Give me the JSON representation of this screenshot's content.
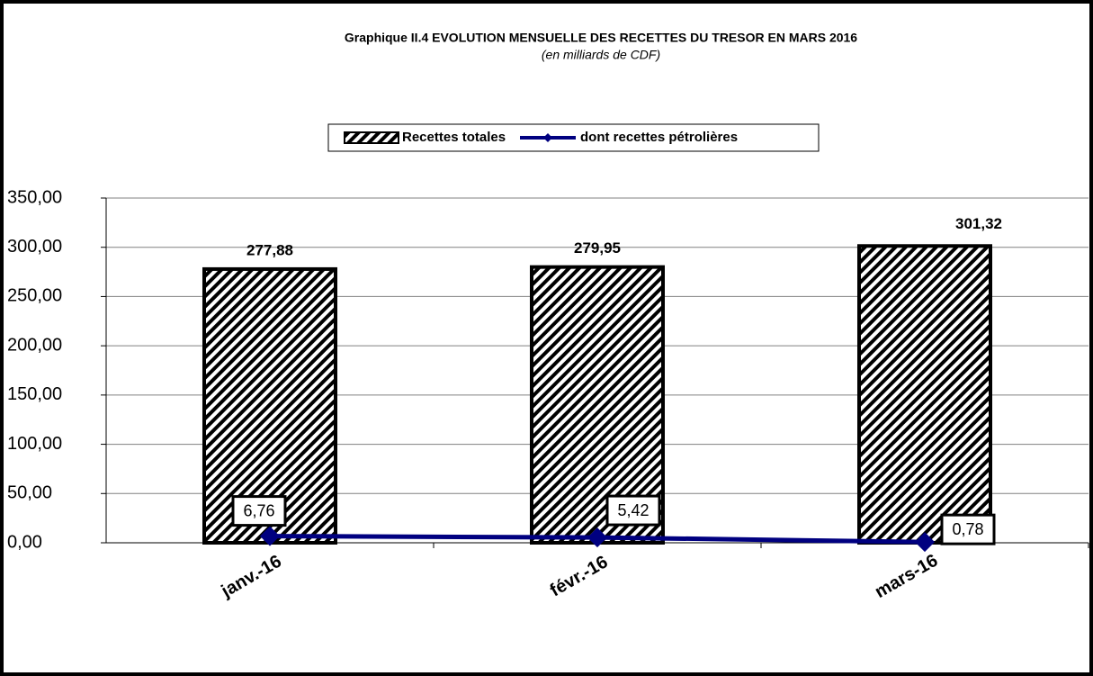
{
  "chart_data": {
    "type": "bar",
    "title": "Graphique II.4  EVOLUTION MENSUELLE DES RECETTES DU TRESOR EN MARS 2016",
    "subtitle": "(en milliards de CDF)",
    "categories": [
      "janv.-16",
      "févr.-16",
      "mars-16"
    ],
    "series": [
      {
        "name": "Recettes totales",
        "type": "bar",
        "color": "#000000",
        "values": [
          277.88,
          279.95,
          301.32
        ],
        "value_labels": [
          "277,88",
          "279,95",
          "301,32"
        ]
      },
      {
        "name": "dont recettes pétrolières",
        "type": "line",
        "color": "#000080",
        "values": [
          6.76,
          5.42,
          0.78
        ],
        "value_labels": [
          "6,76",
          "5,42",
          "0,78"
        ]
      }
    ],
    "ylim": [
      0,
      350
    ],
    "yticks": [
      {
        "value": 0,
        "label": "0,00"
      },
      {
        "value": 50,
        "label": "50,00"
      },
      {
        "value": 100,
        "label": "100,00"
      },
      {
        "value": 150,
        "label": "150,00"
      },
      {
        "value": 200,
        "label": "200,00"
      },
      {
        "value": 250,
        "label": "250,00"
      },
      {
        "value": 300,
        "label": "300,00"
      },
      {
        "value": 350,
        "label": "350,00"
      }
    ],
    "grid": true,
    "legend": "top"
  }
}
